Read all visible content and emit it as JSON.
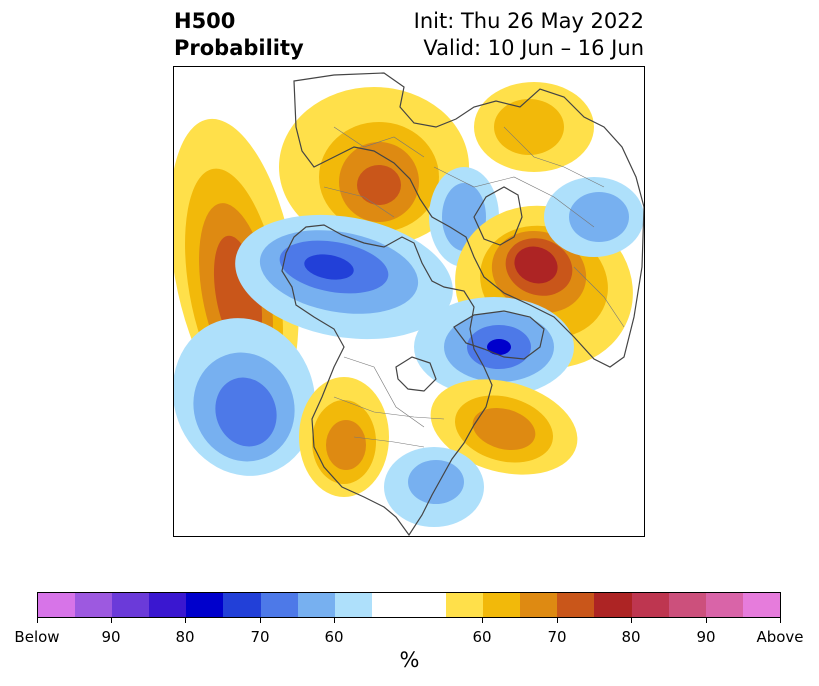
{
  "title": {
    "left_line1": "H500",
    "left_line2": "Probability",
    "right_line1": "Init: Thu 26 May 2022",
    "right_line2": "Valid: 10 Jun – 16 Jun"
  },
  "colorbar": {
    "colors": [
      "#d774e8",
      "#9d59e0",
      "#6b3ad9",
      "#3a17d0",
      "#0000cc",
      "#2240d8",
      "#4d79e8",
      "#77b0f0",
      "#aee0fb",
      "#ffffff",
      "#ffffff",
      "#ffe04a",
      "#f2b90a",
      "#de8a12",
      "#c9561a",
      "#ad2424",
      "#be3650",
      "#cc507c",
      "#d964a8",
      "#e67cdc"
    ],
    "tick_labels": [
      "Below",
      "90",
      "80",
      "70",
      "60",
      "60",
      "70",
      "80",
      "90",
      "Above"
    ],
    "unit_label": "%"
  },
  "legend_scale": {
    "below_colors": {
      "c60": "#aee0fb",
      "c65": "#77b0f0",
      "c70": "#4d79e8",
      "c75": "#2240d8",
      "c80": "#0000cc"
    },
    "above_colors": {
      "c60": "#ffe04a",
      "c65": "#f2b90a",
      "c70": "#de8a12",
      "c75": "#c9561a",
      "c80": "#ad2424"
    }
  }
}
